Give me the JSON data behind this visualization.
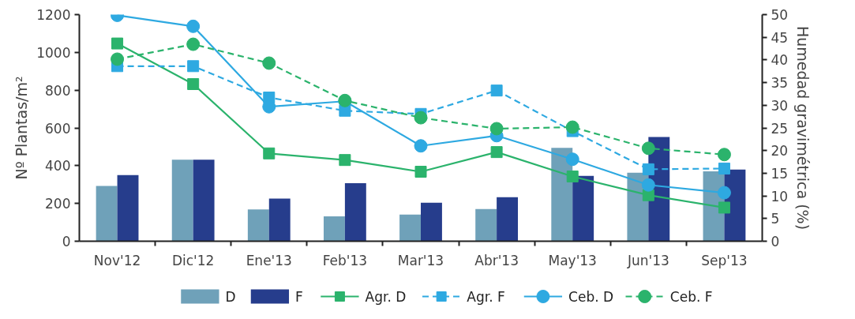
{
  "chart_data": {
    "type": "bar",
    "ylabel": "Nº Plantas/m²",
    "y2label": "Humedad gravimétrica (%)",
    "categories": [
      "Nov'12",
      "Dic'12",
      "Ene'13",
      "Feb'13",
      "Mar'13",
      "Abr'13",
      "May'13",
      "Jun'13",
      "Sep'13"
    ],
    "ylim": [
      0,
      1200
    ],
    "yticks": [
      0,
      200,
      400,
      600,
      800,
      1000,
      1200
    ],
    "y2lim": [
      0,
      50
    ],
    "y2ticks": [
      0,
      5,
      10,
      15,
      20,
      25,
      30,
      35,
      40,
      45,
      50
    ],
    "grid": false,
    "legend": "bottom",
    "series": [
      {
        "name": "D",
        "axis": "y2",
        "color": "#6fa1b9",
        "values": [
          12.2,
          18.0,
          7.0,
          5.5,
          5.9,
          7.1,
          20.6,
          15.1,
          15.4
        ]
      },
      {
        "name": "F",
        "axis": "y2",
        "color": "#263d8c",
        "values": [
          14.6,
          18.0,
          9.4,
          12.8,
          8.5,
          9.7,
          14.4,
          23.0,
          15.8
        ]
      },
      {
        "name": "Agr. D",
        "type": "line",
        "color": "#2bb36c",
        "marker": "square",
        "line_style": "solid",
        "values": [
          1047,
          832,
          465,
          430,
          368,
          472,
          343,
          244,
          178
        ]
      },
      {
        "name": "Agr. F",
        "type": "line",
        "color": "#2ea9e1",
        "marker": "square",
        "line_style": "dashed",
        "values": [
          927,
          927,
          761,
          691,
          674,
          798,
          583,
          381,
          385
        ]
      },
      {
        "name": "Ceb. D",
        "type": "line",
        "color": "#2ea9e1",
        "marker": "circle",
        "line_style": "solid",
        "values": [
          1196,
          1138,
          712,
          741,
          505,
          559,
          434,
          298,
          257
        ]
      },
      {
        "name": "Ceb. F",
        "type": "line",
        "color": "#2bb36c",
        "marker": "circle",
        "line_style": "dashed",
        "values": [
          964,
          1043,
          943,
          745,
          654,
          596,
          604,
          492,
          459
        ]
      }
    ]
  }
}
